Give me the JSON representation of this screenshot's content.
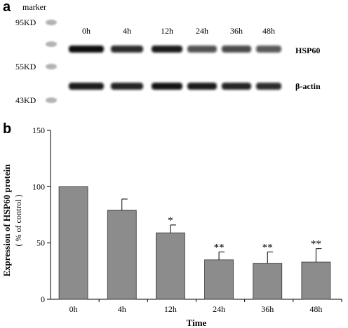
{
  "panels": {
    "a": "a",
    "b": "b"
  },
  "blot": {
    "marker_title": "marker",
    "marker_labels": [
      "95KD",
      "55KD",
      "43KD"
    ],
    "lanes": [
      "0h",
      "4h",
      "12h",
      "24h",
      "36h",
      "48h"
    ],
    "bands": [
      {
        "name": "HSP60",
        "intensity": [
          1.0,
          0.8,
          0.9,
          0.55,
          0.6,
          0.5
        ]
      },
      {
        "name": "β-actin",
        "intensity": [
          0.9,
          0.85,
          0.95,
          0.9,
          0.85,
          0.8
        ]
      }
    ],
    "colors": {
      "band": "#111111",
      "smear": "#9a9a9a"
    }
  },
  "chart_data": {
    "type": "bar",
    "categories": [
      "0h",
      "4h",
      "12h",
      "24h",
      "36h",
      "48h"
    ],
    "values": [
      100,
      79,
      59,
      35,
      32,
      33
    ],
    "errors": [
      0,
      10,
      7,
      7,
      10,
      12
    ],
    "significance": [
      "",
      "",
      "*",
      "**",
      "**",
      "**"
    ],
    "ylabel": "Expression of HSP60 protein",
    "ylabel_sub": "( % of control )",
    "xlabel": "Time",
    "yticks": [
      0,
      50,
      100,
      150
    ],
    "ylim": [
      0,
      150
    ],
    "grid": false,
    "bar_color": "#8c8c8c"
  }
}
